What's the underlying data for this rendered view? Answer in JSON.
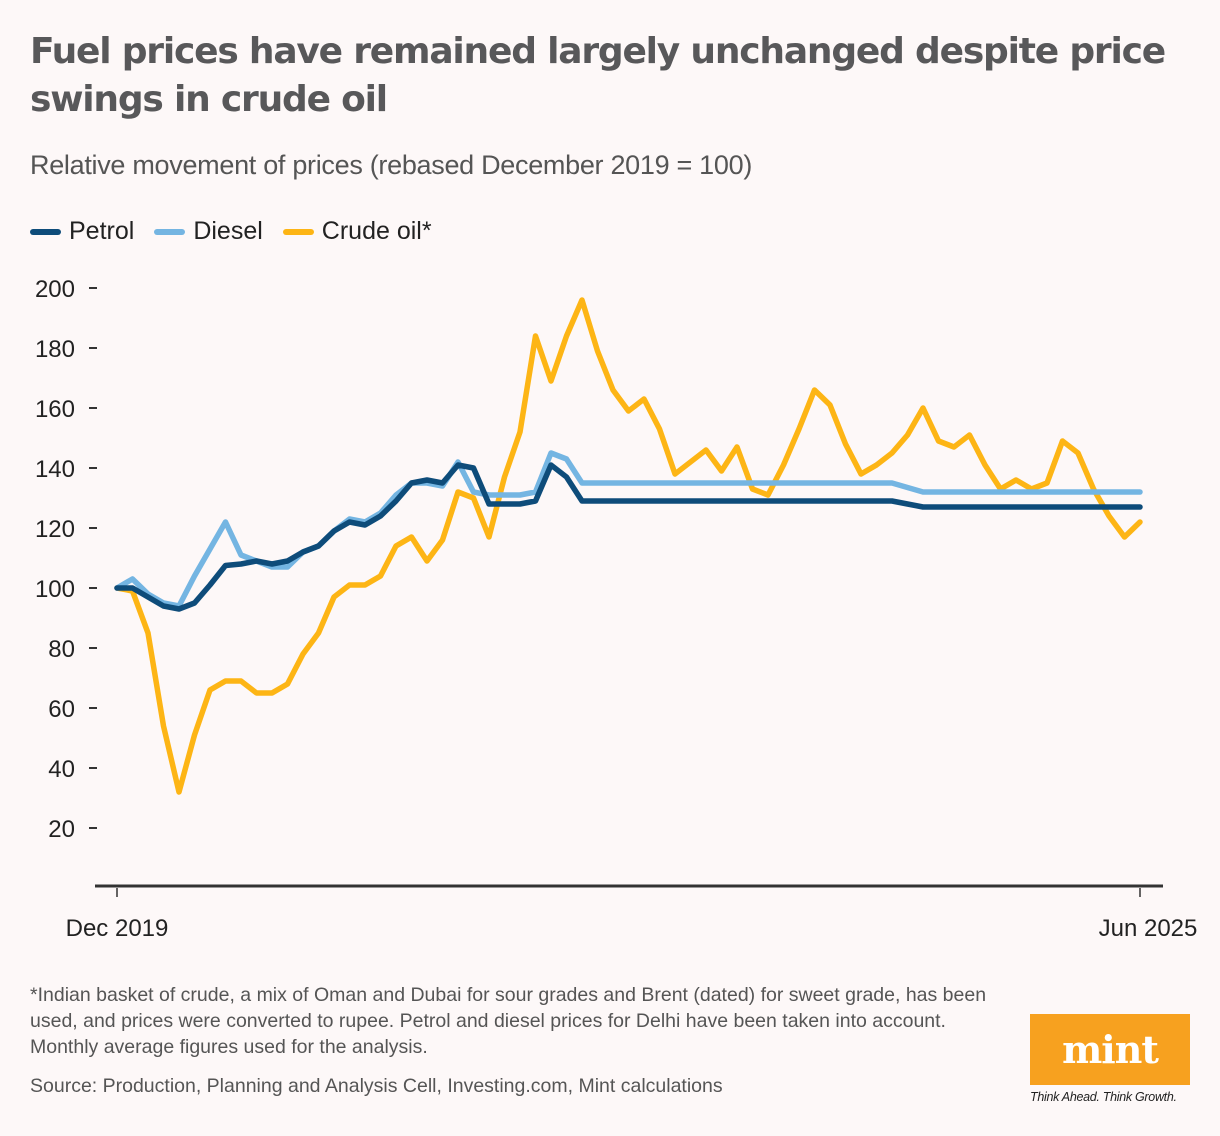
{
  "header": {
    "title": "Fuel prices have remained largely unchanged despite price swings in crude oil",
    "subtitle": "Relative movement of prices (rebased December 2019 = 100)"
  },
  "legend": [
    {
      "label": "Petrol",
      "color": "#0e4c7a"
    },
    {
      "label": "Diesel",
      "color": "#74b5e2"
    },
    {
      "label": "Crude oil*",
      "color": "#fdb515"
    }
  ],
  "footer": {
    "footnote": "*Indian basket of crude, a mix of Oman and Dubai for sour grades and Brent (dated) for sweet grade, has been used, and prices were converted to rupee. Petrol and diesel prices for Delhi have been taken into account. Monthly average figures used for the analysis.",
    "source": "Source: Production, Planning and Analysis Cell, Investing.com, Mint calculations",
    "logo_text": "mint",
    "logo_tagline": "Think Ahead. Think Growth.",
    "logo_color": "#f7a11f"
  },
  "chart_data": {
    "type": "line",
    "title": "Fuel prices have remained largely unchanged despite price swings in crude oil",
    "subtitle": "Relative movement of prices (rebased December 2019 = 100)",
    "xlabel": "",
    "ylabel": "",
    "x_start": "Dec 2019",
    "x_end": "Jun 2025",
    "x_tick_labels": [
      "Dec 2019",
      "Jun 2025"
    ],
    "x_tick_index": [
      0,
      66
    ],
    "frequency": "monthly",
    "y_ticks": [
      20,
      40,
      60,
      80,
      100,
      120,
      140,
      160,
      180,
      200
    ],
    "ylim": [
      0,
      200
    ],
    "grid": false,
    "legend_position": "top-left",
    "series": [
      {
        "name": "Petrol",
        "color": "#0e4c7a",
        "values": [
          100,
          100,
          97,
          94,
          93,
          95,
          101,
          107.5,
          108,
          109,
          108,
          109,
          112,
          114,
          119,
          122,
          121,
          124,
          129,
          135,
          136,
          135,
          141,
          140,
          128,
          128,
          128,
          129,
          141,
          137,
          129,
          129,
          129,
          129,
          129,
          129,
          129,
          129,
          129,
          129,
          129,
          129,
          129,
          129,
          129,
          129,
          129,
          129,
          129,
          129,
          129,
          128,
          127,
          127,
          127,
          127,
          127,
          127,
          127,
          127,
          127,
          127,
          127,
          127,
          127,
          127,
          127
        ]
      },
      {
        "name": "Diesel",
        "color": "#74b5e2",
        "values": [
          100,
          103,
          98,
          95,
          94,
          104,
          113,
          122,
          111,
          109,
          107,
          107,
          112,
          114,
          119,
          123,
          122,
          125,
          131,
          135,
          135,
          134,
          142,
          132,
          131,
          131,
          131,
          132,
          145,
          143,
          135,
          135,
          135,
          135,
          135,
          135,
          135,
          135,
          135,
          135,
          135,
          135,
          135,
          135,
          135,
          135,
          135,
          135,
          135,
          135,
          135,
          133.5,
          132,
          132,
          132,
          132,
          132,
          132,
          132,
          132,
          132,
          132,
          132,
          132,
          132,
          132,
          132
        ]
      },
      {
        "name": "Crude oil*",
        "color": "#fdb515",
        "values": [
          100,
          99,
          85,
          54,
          32,
          51,
          66,
          69,
          69,
          65,
          65,
          68,
          78,
          85,
          97,
          101,
          101,
          104,
          114,
          117,
          109,
          116,
          132,
          130,
          117,
          137,
          152,
          184,
          169,
          184,
          196,
          179,
          166,
          159,
          163,
          153,
          138,
          142,
          146,
          139,
          147,
          133,
          131,
          141,
          153,
          166,
          161,
          148,
          138,
          141,
          145,
          151,
          160,
          149,
          147,
          151,
          141,
          133,
          136,
          133,
          135,
          149,
          145,
          133,
          124,
          117,
          122
        ]
      }
    ]
  }
}
